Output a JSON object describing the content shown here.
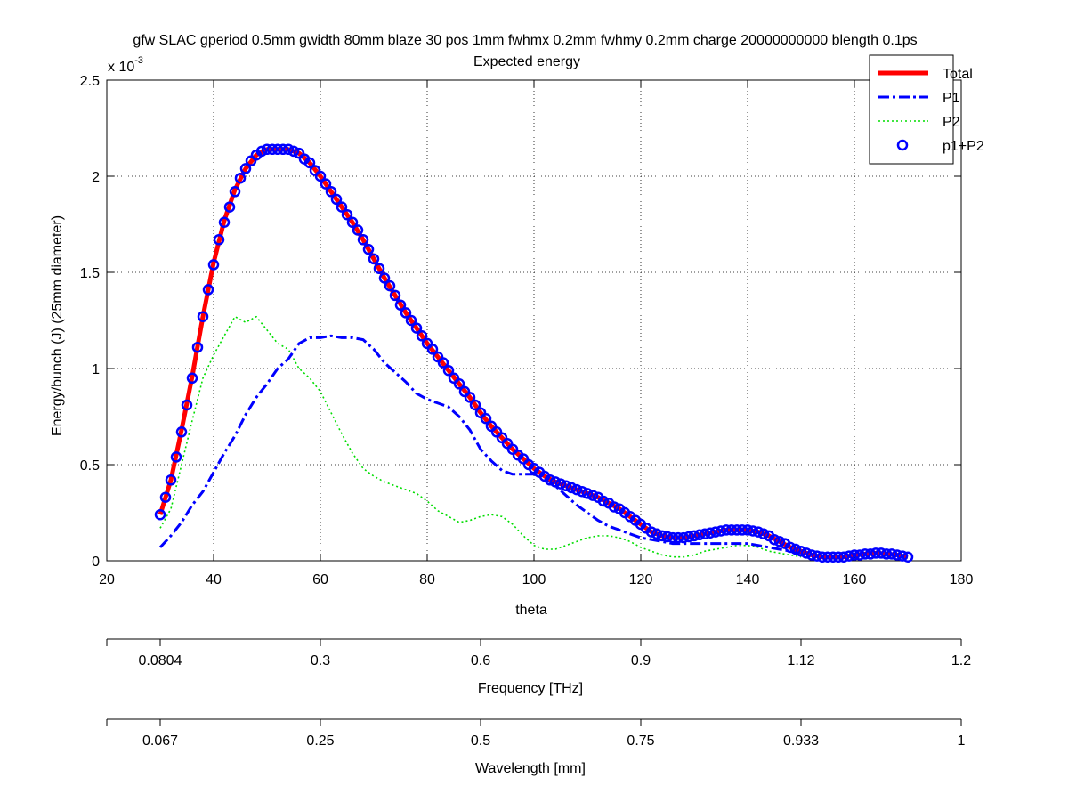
{
  "chart_data": {
    "type": "line",
    "title": "gfw SLAC gperiod 0.5mm gwidth 80mm blaze 30 pos 1mm fwhmx 0.2mm fwhmy 0.2mm charge 20000000000 blength 0.1ps",
    "subtitle": "Expected energy",
    "xlabel": "theta",
    "ylabel": "Energy/bunch (J) (25mm diameter)",
    "y_exponent_label": "x 10",
    "y_exponent_power": "-3",
    "xlim": [
      20,
      180
    ],
    "ylim": [
      0,
      2.5
    ],
    "x_ticks": [
      20,
      40,
      60,
      80,
      100,
      120,
      140,
      160,
      180
    ],
    "x_tick_labels": [
      "20",
      "40",
      "60",
      "80",
      "100",
      "120",
      "140",
      "160",
      "180"
    ],
    "y_ticks": [
      0,
      0.5,
      1,
      1.5,
      2,
      2.5
    ],
    "y_tick_labels": [
      "0",
      "0.5",
      "1",
      "1.5",
      "2",
      "2.5"
    ],
    "grid": true,
    "legend_position": "top-right",
    "secondary_axes": [
      {
        "label": "Frequency [THz]",
        "tick_theta": [
          20,
          30,
          60,
          90,
          120,
          150,
          180
        ],
        "tick_labels": [
          "",
          "0.0804",
          "0.3",
          "0.6",
          "0.9",
          "1.12",
          "1.2"
        ]
      },
      {
        "label": "Wavelength [mm]",
        "tick_theta": [
          20,
          30,
          60,
          90,
          120,
          150,
          180
        ],
        "tick_labels": [
          "",
          "0.067",
          "0.25",
          "0.5",
          "0.75",
          "0.933",
          "1"
        ]
      }
    ],
    "series": [
      {
        "name": "Total",
        "style": "solid",
        "color": "#ff0000",
        "x": [
          30,
          32,
          34,
          36,
          38,
          40,
          42,
          44,
          46,
          48,
          50,
          52,
          54,
          56,
          58,
          60,
          62,
          64,
          66,
          68,
          70,
          72,
          74,
          76,
          78,
          80,
          82,
          84,
          86,
          88,
          90,
          92,
          94,
          96,
          98,
          100,
          102,
          104,
          106,
          108,
          110,
          112,
          114,
          116,
          118,
          120,
          122,
          124,
          126,
          128,
          130,
          132,
          134,
          136,
          138,
          140,
          142,
          144,
          146,
          148,
          150,
          152,
          154,
          156,
          158,
          160,
          162,
          164,
          166,
          168,
          170
        ],
        "y": [
          0.24,
          0.42,
          0.68,
          0.96,
          1.27,
          1.55,
          1.77,
          1.93,
          2.04,
          2.11,
          2.14,
          2.14,
          2.14,
          2.12,
          2.07,
          2.0,
          1.92,
          1.84,
          1.76,
          1.67,
          1.57,
          1.47,
          1.38,
          1.29,
          1.21,
          1.13,
          1.06,
          0.99,
          0.92,
          0.85,
          0.77,
          0.7,
          0.64,
          0.58,
          0.53,
          0.48,
          0.44,
          0.41,
          0.39,
          0.37,
          0.35,
          0.33,
          0.3,
          0.27,
          0.23,
          0.19,
          0.15,
          0.13,
          0.12,
          0.12,
          0.13,
          0.14,
          0.15,
          0.16,
          0.16,
          0.16,
          0.15,
          0.13,
          0.1,
          0.07,
          0.05,
          0.03,
          0.02,
          0.02,
          0.02,
          0.03,
          0.035,
          0.04,
          0.035,
          0.03,
          0.02
        ]
      },
      {
        "name": "P1",
        "style": "dash-dot",
        "color": "#0000ff",
        "x": [
          30,
          32,
          34,
          36,
          38,
          40,
          42,
          44,
          46,
          48,
          50,
          52,
          54,
          56,
          58,
          60,
          62,
          64,
          66,
          68,
          70,
          72,
          74,
          76,
          78,
          80,
          82,
          84,
          86,
          88,
          90,
          92,
          94,
          96,
          98,
          100,
          102,
          104,
          106,
          108,
          110,
          112,
          114,
          116,
          118,
          120,
          122,
          124,
          126,
          128,
          130,
          132,
          134,
          136,
          138,
          140,
          142,
          144,
          146,
          148,
          150,
          152
        ],
        "y": [
          0.07,
          0.13,
          0.2,
          0.29,
          0.36,
          0.46,
          0.56,
          0.65,
          0.76,
          0.85,
          0.92,
          1.0,
          1.05,
          1.13,
          1.16,
          1.16,
          1.17,
          1.16,
          1.16,
          1.15,
          1.1,
          1.03,
          0.98,
          0.93,
          0.87,
          0.84,
          0.82,
          0.8,
          0.75,
          0.68,
          0.58,
          0.52,
          0.47,
          0.45,
          0.45,
          0.45,
          0.43,
          0.39,
          0.34,
          0.29,
          0.25,
          0.21,
          0.18,
          0.16,
          0.14,
          0.12,
          0.11,
          0.1,
          0.09,
          0.09,
          0.09,
          0.09,
          0.09,
          0.09,
          0.09,
          0.09,
          0.08,
          0.07,
          0.06,
          0.05,
          0.04,
          0.03
        ]
      },
      {
        "name": "P2",
        "style": "dotted",
        "color": "#00dd00",
        "x": [
          30,
          32,
          34,
          36,
          38,
          40,
          42,
          44,
          46,
          48,
          50,
          52,
          54,
          56,
          58,
          60,
          62,
          64,
          66,
          68,
          70,
          72,
          74,
          76,
          78,
          80,
          82,
          84,
          86,
          88,
          90,
          92,
          94,
          96,
          98,
          100,
          102,
          104,
          106,
          108,
          110,
          112,
          114,
          116,
          118,
          120,
          122,
          124,
          126,
          128,
          130,
          132,
          134,
          136,
          138,
          140,
          142,
          144,
          146,
          148,
          150
        ],
        "y": [
          0.17,
          0.27,
          0.5,
          0.73,
          0.95,
          1.07,
          1.17,
          1.27,
          1.24,
          1.27,
          1.2,
          1.13,
          1.1,
          1.0,
          0.95,
          0.88,
          0.77,
          0.66,
          0.56,
          0.48,
          0.44,
          0.41,
          0.39,
          0.37,
          0.35,
          0.31,
          0.26,
          0.23,
          0.2,
          0.21,
          0.23,
          0.24,
          0.23,
          0.19,
          0.13,
          0.08,
          0.06,
          0.06,
          0.08,
          0.1,
          0.12,
          0.13,
          0.13,
          0.12,
          0.1,
          0.07,
          0.05,
          0.03,
          0.02,
          0.02,
          0.03,
          0.05,
          0.06,
          0.07,
          0.08,
          0.08,
          0.07,
          0.05,
          0.04,
          0.03,
          0.02
        ]
      },
      {
        "name": "p1+P2",
        "style": "circle-markers",
        "color": "#0000ff",
        "x": [
          30,
          31,
          32,
          33,
          34,
          35,
          36,
          37,
          38,
          39,
          40,
          41,
          42,
          43,
          44,
          45,
          46,
          47,
          48,
          49,
          50,
          51,
          52,
          53,
          54,
          55,
          56,
          57,
          58,
          59,
          60,
          61,
          62,
          63,
          64,
          65,
          66,
          67,
          68,
          69,
          70,
          71,
          72,
          73,
          74,
          75,
          76,
          77,
          78,
          79,
          80,
          81,
          82,
          83,
          84,
          85,
          86,
          87,
          88,
          89,
          90,
          91,
          92,
          93,
          94,
          95,
          96,
          97,
          98,
          99,
          100,
          101,
          102,
          103,
          104,
          105,
          106,
          107,
          108,
          109,
          110,
          111,
          112,
          113,
          114,
          115,
          116,
          117,
          118,
          119,
          120,
          121,
          122,
          123,
          124,
          125,
          126,
          127,
          128,
          129,
          130,
          131,
          132,
          133,
          134,
          135,
          136,
          137,
          138,
          139,
          140,
          141,
          142,
          143,
          144,
          145,
          146,
          147,
          148,
          149,
          150,
          151,
          152,
          153,
          154,
          155,
          156,
          157,
          158,
          159,
          160,
          161,
          162,
          163,
          164,
          165,
          166,
          167,
          168,
          169,
          170
        ],
        "y": [
          0.24,
          0.33,
          0.42,
          0.54,
          0.67,
          0.81,
          0.95,
          1.11,
          1.27,
          1.41,
          1.54,
          1.67,
          1.76,
          1.84,
          1.92,
          1.99,
          2.04,
          2.08,
          2.11,
          2.13,
          2.14,
          2.14,
          2.14,
          2.14,
          2.14,
          2.13,
          2.12,
          2.09,
          2.07,
          2.03,
          2.0,
          1.96,
          1.92,
          1.88,
          1.84,
          1.8,
          1.76,
          1.72,
          1.67,
          1.62,
          1.57,
          1.52,
          1.47,
          1.43,
          1.38,
          1.33,
          1.29,
          1.25,
          1.21,
          1.17,
          1.13,
          1.1,
          1.06,
          1.03,
          0.99,
          0.95,
          0.92,
          0.88,
          0.85,
          0.81,
          0.77,
          0.74,
          0.7,
          0.67,
          0.64,
          0.61,
          0.58,
          0.55,
          0.53,
          0.5,
          0.48,
          0.46,
          0.44,
          0.42,
          0.41,
          0.4,
          0.39,
          0.38,
          0.37,
          0.36,
          0.35,
          0.34,
          0.33,
          0.31,
          0.3,
          0.28,
          0.27,
          0.25,
          0.23,
          0.21,
          0.19,
          0.17,
          0.15,
          0.14,
          0.13,
          0.125,
          0.12,
          0.12,
          0.12,
          0.125,
          0.13,
          0.135,
          0.14,
          0.145,
          0.15,
          0.155,
          0.16,
          0.16,
          0.16,
          0.16,
          0.16,
          0.155,
          0.15,
          0.14,
          0.13,
          0.11,
          0.1,
          0.09,
          0.07,
          0.06,
          0.05,
          0.04,
          0.03,
          0.025,
          0.02,
          0.02,
          0.02,
          0.02,
          0.02,
          0.025,
          0.03,
          0.03,
          0.035,
          0.035,
          0.04,
          0.04,
          0.035,
          0.035,
          0.03,
          0.025,
          0.02
        ]
      }
    ]
  }
}
